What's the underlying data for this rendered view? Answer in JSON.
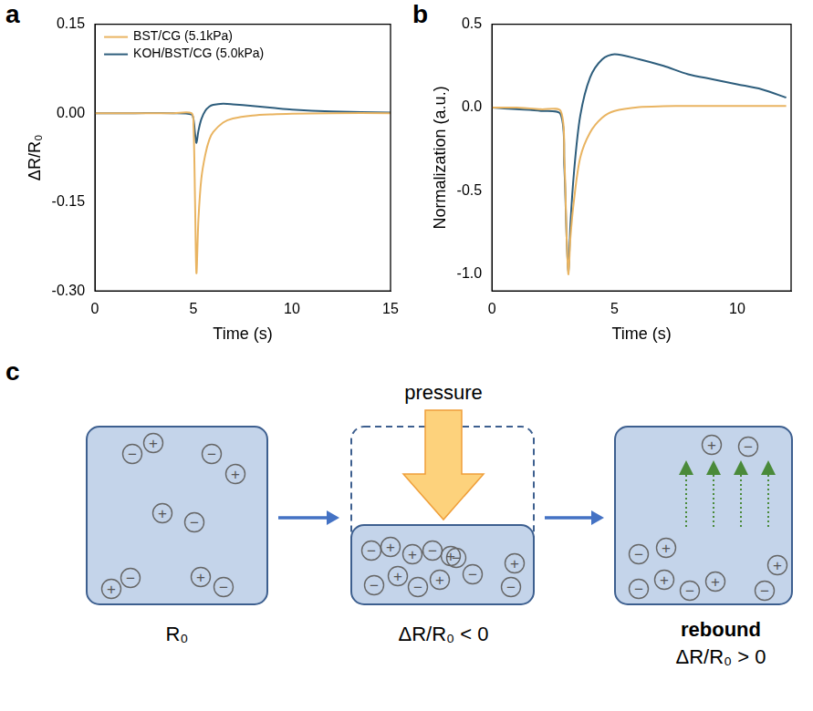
{
  "chart_data": [
    {
      "panel": "a",
      "type": "line",
      "x_label": "Time (s)",
      "y_label": "ΔR/R₀",
      "xlim": [
        0,
        15
      ],
      "xticks": [
        0,
        5,
        10,
        15
      ],
      "ylim": [
        -0.3,
        0.15
      ],
      "yticks": [
        {
          "value": -0.3,
          "label": "-0.30"
        },
        {
          "value": -0.15,
          "label": "-0.15"
        },
        {
          "value": 0,
          "label": "0.00"
        },
        {
          "value": 0.15,
          "label": "0.15"
        }
      ],
      "grid": false,
      "legend": "upper left",
      "series": [
        {
          "name": "BST/CG (5.1kPa)",
          "color": "#e9b461",
          "x": [
            0,
            2,
            4,
            4.9,
            5.0,
            5.08,
            5.15,
            5.25,
            5.4,
            5.6,
            5.8,
            6.0,
            6.5,
            7.0,
            8.0,
            9.0,
            10.0,
            12.0,
            15.0
          ],
          "values": [
            0,
            0,
            0,
            0,
            -0.02,
            -0.15,
            -0.27,
            -0.18,
            -0.11,
            -0.07,
            -0.045,
            -0.032,
            -0.016,
            -0.009,
            -0.004,
            -0.002,
            -0.001,
            0,
            0
          ]
        },
        {
          "name": "KOH/BST/CG (5.0kPa)",
          "color": "#2d5d7c",
          "x": [
            0,
            2,
            4,
            4.9,
            5.0,
            5.08,
            5.15,
            5.25,
            5.4,
            5.6,
            5.8,
            6.0,
            6.5,
            7.0,
            8.0,
            9.0,
            10.0,
            12.0,
            15.0
          ],
          "values": [
            0,
            0,
            0,
            -0.002,
            -0.01,
            -0.035,
            -0.05,
            -0.03,
            -0.01,
            0.004,
            0.011,
            0.014,
            0.016,
            0.015,
            0.012,
            0.009,
            0.006,
            0.003,
            0.001
          ]
        }
      ]
    },
    {
      "panel": "b",
      "type": "line",
      "x_label": "Time (s)",
      "y_label": "Normalization (a.u.)",
      "xlim": [
        0,
        12.2
      ],
      "xticks": [
        0,
        5,
        10
      ],
      "ylim": [
        -1.1,
        0.5
      ],
      "yticks": [
        {
          "value": -1,
          "label": "-1.0"
        },
        {
          "value": -0.5,
          "label": "-0.5"
        },
        {
          "value": 0,
          "label": "0.0"
        },
        {
          "value": 0.5,
          "label": "0.5"
        }
      ],
      "grid": false,
      "series": [
        {
          "name": "BST/CG (5.1kPa)",
          "color": "#e9b461",
          "x": [
            0,
            1,
            2,
            2.8,
            2.95,
            3.05,
            3.12,
            3.2,
            3.35,
            3.6,
            4.0,
            4.5,
            5.0,
            6.0,
            7.0,
            8.0,
            10.0,
            12.0
          ],
          "values": [
            0,
            0,
            -0.01,
            -0.02,
            -0.3,
            -0.8,
            -1.0,
            -0.78,
            -0.55,
            -0.3,
            -0.15,
            -0.06,
            -0.02,
            0.003,
            0.008,
            0.01,
            0.01,
            0.01
          ]
        },
        {
          "name": "KOH/BST/CG (5.0kPa)",
          "color": "#2d5d7c",
          "x": [
            0,
            1,
            2,
            2.8,
            2.95,
            3.05,
            3.12,
            3.2,
            3.35,
            3.6,
            4.0,
            4.5,
            5.0,
            6.0,
            7.0,
            8.0,
            9.0,
            10.0,
            11.0,
            12.0
          ],
          "values": [
            0,
            -0.01,
            -0.02,
            -0.04,
            -0.35,
            -0.8,
            -0.98,
            -0.7,
            -0.38,
            -0.05,
            0.18,
            0.29,
            0.32,
            0.29,
            0.25,
            0.2,
            0.17,
            0.14,
            0.11,
            0.06
          ]
        }
      ]
    }
  ],
  "diagram": {
    "panel": "c",
    "arrow_label": "pressure",
    "cation": "+",
    "anion": "−",
    "states": [
      {
        "label": "R₀"
      },
      {
        "label": "ΔR/R₀ < 0"
      },
      {
        "title": "rebound",
        "label": "ΔR/R₀ > 0"
      }
    ]
  }
}
